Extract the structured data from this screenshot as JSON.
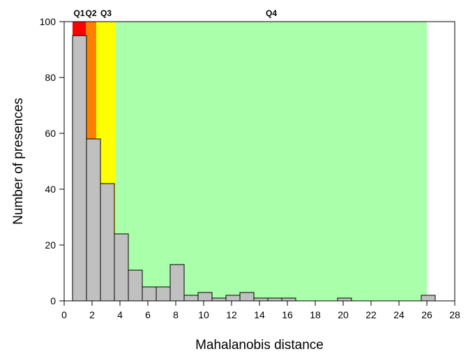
{
  "chart_data": {
    "type": "bar",
    "title": "",
    "xlabel": "Mahalanobis distance",
    "ylabel": "Number of presences",
    "xlim": [
      0,
      28
    ],
    "ylim": [
      0,
      100
    ],
    "x_ticks": [
      "0",
      "2",
      "4",
      "6",
      "8",
      "10",
      "12",
      "14",
      "16",
      "18",
      "20",
      "22",
      "24",
      "26",
      "28"
    ],
    "y_ticks": [
      "0",
      "20",
      "40",
      "60",
      "80",
      "100"
    ],
    "grid": false,
    "bin_width": 1,
    "bins": [
      {
        "x0": 0.6,
        "value": 95
      },
      {
        "x0": 1.6,
        "value": 58
      },
      {
        "x0": 2.6,
        "value": 42
      },
      {
        "x0": 3.6,
        "value": 24
      },
      {
        "x0": 4.6,
        "value": 11
      },
      {
        "x0": 5.6,
        "value": 5
      },
      {
        "x0": 6.6,
        "value": 5
      },
      {
        "x0": 7.6,
        "value": 13
      },
      {
        "x0": 8.6,
        "value": 2
      },
      {
        "x0": 9.6,
        "value": 3
      },
      {
        "x0": 10.6,
        "value": 1
      },
      {
        "x0": 11.6,
        "value": 2
      },
      {
        "x0": 12.6,
        "value": 3
      },
      {
        "x0": 13.6,
        "value": 1
      },
      {
        "x0": 14.6,
        "value": 1
      },
      {
        "x0": 15.6,
        "value": 1
      },
      {
        "x0": 19.6,
        "value": 1
      },
      {
        "x0": 25.6,
        "value": 2
      }
    ],
    "quartile_bands": [
      {
        "label": "Q1",
        "x0": 0.6,
        "x1": 1.55,
        "color": "#ff0000"
      },
      {
        "label": "Q2",
        "x0": 1.55,
        "x1": 2.3,
        "color": "#ff8000"
      },
      {
        "label": "Q3",
        "x0": 2.3,
        "x1": 3.7,
        "color": "#ffff00"
      },
      {
        "label": "Q4",
        "x0": 3.7,
        "x1": 26.0,
        "color": "#aaffaa"
      }
    ],
    "bar_color": "#c0c0c0",
    "bar_edge_color": "#000000"
  }
}
